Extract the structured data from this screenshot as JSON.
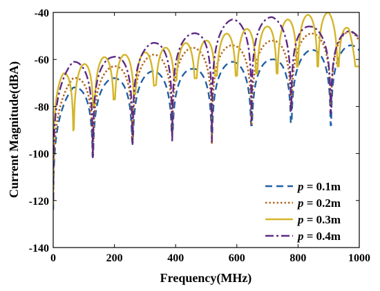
{
  "chart_data": {
    "type": "line",
    "title": "",
    "xlabel": "Frequency(MHz)",
    "ylabel": "Current Magnitude(dBA)",
    "xlim": [
      0,
      1000
    ],
    "ylim": [
      -140,
      -40
    ],
    "xticks": [
      0,
      200,
      400,
      600,
      800,
      1000
    ],
    "yticks": [
      -40,
      -60,
      -80,
      -100,
      -120,
      -140
    ],
    "xtick_labels": [
      "0",
      "200",
      "400",
      "600",
      "800",
      "1000"
    ],
    "ytick_labels": [
      "-40",
      "-60",
      "-80",
      "-100",
      "-120",
      "-140"
    ],
    "grid": false,
    "legend_position": "bottom-right",
    "series": [
      {
        "name": "p = 0.1m",
        "legend_var": "p",
        "legend_rest": " = 0.1m",
        "color": "#1f5fa6",
        "dash": "dashed",
        "spacing_mhz": 129.6,
        "envelope": [
          [
            0,
            -82
          ],
          [
            65,
            -72
          ],
          [
            195,
            -68
          ],
          [
            325,
            -65
          ],
          [
            455,
            -64
          ],
          [
            585,
            -61
          ],
          [
            715,
            -60
          ],
          [
            840,
            -56
          ],
          [
            970,
            -54
          ],
          [
            1000,
            -54
          ]
        ],
        "null_depth": [
          [
            0,
            -124
          ],
          [
            130,
            -101
          ],
          [
            259,
            -95
          ],
          [
            389,
            -91
          ],
          [
            518,
            -92
          ],
          [
            648,
            -88
          ],
          [
            778,
            -87
          ],
          [
            907,
            -88
          ]
        ]
      },
      {
        "name": "p = 0.2m",
        "legend_var": "p",
        "legend_rest": " = 0.2m",
        "color": "#b5651d",
        "dash": "dotted",
        "spacing_mhz": 129.6,
        "envelope": [
          [
            0,
            -78
          ],
          [
            65,
            -68
          ],
          [
            195,
            -63
          ],
          [
            325,
            -58
          ],
          [
            455,
            -55
          ],
          [
            585,
            -54
          ],
          [
            715,
            -52
          ],
          [
            840,
            -49
          ],
          [
            970,
            -48
          ],
          [
            1000,
            -50
          ]
        ],
        "null_depth": [
          [
            0,
            -122
          ],
          [
            130,
            -101
          ],
          [
            259,
            -95
          ],
          [
            389,
            -91
          ],
          [
            518,
            -96
          ],
          [
            648,
            -88
          ],
          [
            778,
            -82
          ],
          [
            907,
            -80
          ]
        ]
      },
      {
        "name": "p = 0.3m",
        "legend_var": "p",
        "legend_rest": " = 0.3m",
        "color": "#d4b52a",
        "dash": "solid",
        "spacing_mhz": 66.5,
        "envelope": [
          [
            0,
            -72
          ],
          [
            33,
            -66
          ],
          [
            100,
            -62
          ],
          [
            166,
            -59
          ],
          [
            233,
            -58
          ],
          [
            300,
            -57
          ],
          [
            366,
            -55
          ],
          [
            433,
            -53
          ],
          [
            500,
            -52
          ],
          [
            566,
            -49
          ],
          [
            633,
            -47
          ],
          [
            700,
            -46
          ],
          [
            766,
            -43
          ],
          [
            833,
            -41
          ],
          [
            900,
            -40
          ],
          [
            966,
            -47
          ],
          [
            1000,
            -62
          ]
        ],
        "null_depth": [
          [
            0,
            -122
          ],
          [
            66,
            -90
          ],
          [
            133,
            -80
          ],
          [
            200,
            -77
          ],
          [
            266,
            -75
          ],
          [
            333,
            -71
          ],
          [
            400,
            -69
          ],
          [
            466,
            -68
          ],
          [
            533,
            -67
          ],
          [
            600,
            -67
          ],
          [
            666,
            -66
          ],
          [
            733,
            -66
          ],
          [
            800,
            -63
          ],
          [
            866,
            -63
          ],
          [
            933,
            -63
          ],
          [
            1000,
            -63
          ]
        ]
      },
      {
        "name": "p = 0.4m",
        "legend_var": "p",
        "legend_rest": " = 0.4m",
        "color": "#5e2a84",
        "dash": "dashdot",
        "spacing_mhz": 129.6,
        "envelope": [
          [
            0,
            -70
          ],
          [
            65,
            -61
          ],
          [
            195,
            -59
          ],
          [
            325,
            -53
          ],
          [
            455,
            -49
          ],
          [
            585,
            -43
          ],
          [
            715,
            -42
          ],
          [
            840,
            -46
          ],
          [
            970,
            -48
          ],
          [
            1000,
            -49
          ]
        ],
        "null_depth": [
          [
            0,
            -120
          ],
          [
            130,
            -102
          ],
          [
            259,
            -96
          ],
          [
            389,
            -95
          ],
          [
            518,
            -95
          ],
          [
            648,
            -86
          ],
          [
            778,
            -82
          ],
          [
            907,
            -83
          ]
        ]
      }
    ]
  }
}
